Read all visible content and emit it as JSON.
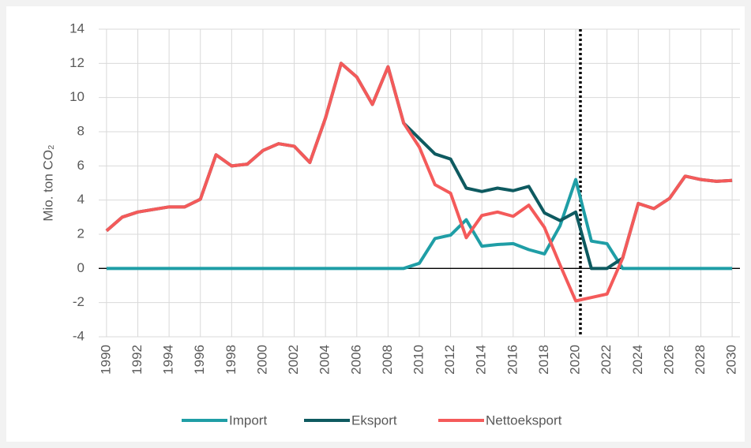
{
  "chart_data": {
    "type": "line",
    "x": [
      1990,
      1991,
      1992,
      1993,
      1994,
      1995,
      1996,
      1997,
      1998,
      1999,
      2000,
      2001,
      2002,
      2003,
      2004,
      2005,
      2006,
      2007,
      2008,
      2009,
      2010,
      2011,
      2012,
      2013,
      2014,
      2015,
      2016,
      2017,
      2018,
      2019,
      2020,
      2021,
      2022,
      2023,
      2024,
      2025,
      2026,
      2027,
      2028,
      2029,
      2030
    ],
    "y_label": "Mio. ton CO₂",
    "series": [
      {
        "name": "Import",
        "color": "#1f9ea6",
        "values": [
          0,
          0,
          0,
          0,
          0,
          0,
          0,
          0,
          0,
          0,
          0,
          0,
          0,
          0,
          0,
          0,
          0,
          0,
          0,
          0,
          0.3,
          1.75,
          1.95,
          2.85,
          1.3,
          1.4,
          1.45,
          1.1,
          0.85,
          2.5,
          5.2,
          1.6,
          1.45,
          0,
          0,
          0,
          0,
          0,
          0,
          0,
          0
        ]
      },
      {
        "name": "Eksport",
        "color": "#0e5a60",
        "values": [
          2.2,
          3.0,
          3.3,
          3.45,
          3.6,
          3.6,
          4.05,
          6.65,
          6.0,
          6.1,
          6.9,
          7.3,
          7.15,
          6.2,
          8.8,
          12.0,
          11.2,
          9.6,
          11.8,
          8.5,
          7.6,
          6.7,
          6.4,
          4.7,
          4.5,
          4.7,
          4.55,
          4.8,
          3.25,
          2.8,
          3.3,
          0,
          0,
          0.6,
          3.8,
          3.5,
          4.1,
          5.4,
          5.2,
          5.1,
          5.15
        ]
      },
      {
        "name": "Nettoeksport",
        "color": "#f45a5a",
        "values": [
          2.2,
          3.0,
          3.3,
          3.45,
          3.6,
          3.6,
          4.05,
          6.65,
          6.0,
          6.1,
          6.9,
          7.3,
          7.15,
          6.2,
          8.8,
          12.0,
          11.2,
          9.6,
          11.8,
          8.5,
          7.1,
          4.9,
          4.4,
          1.8,
          3.1,
          3.3,
          3.05,
          3.7,
          2.4,
          0.2,
          -1.9,
          -1.7,
          -1.5,
          0.6,
          3.8,
          3.5,
          4.1,
          5.4,
          5.2,
          5.1,
          5.15
        ]
      }
    ],
    "xlim": [
      1989.5,
      2030.5
    ],
    "xticks": [
      1990,
      1992,
      1994,
      1996,
      1998,
      2000,
      2002,
      2004,
      2006,
      2008,
      2010,
      2012,
      2014,
      2016,
      2018,
      2020,
      2022,
      2024,
      2026,
      2028,
      2030
    ],
    "ylim": [
      -4,
      14
    ],
    "yticks": [
      -4,
      -2,
      0,
      2,
      4,
      6,
      8,
      10,
      12,
      14
    ],
    "grid": true,
    "vertical_line": {
      "x": 2020.3,
      "style": "dotted"
    },
    "legend": "bottom"
  }
}
